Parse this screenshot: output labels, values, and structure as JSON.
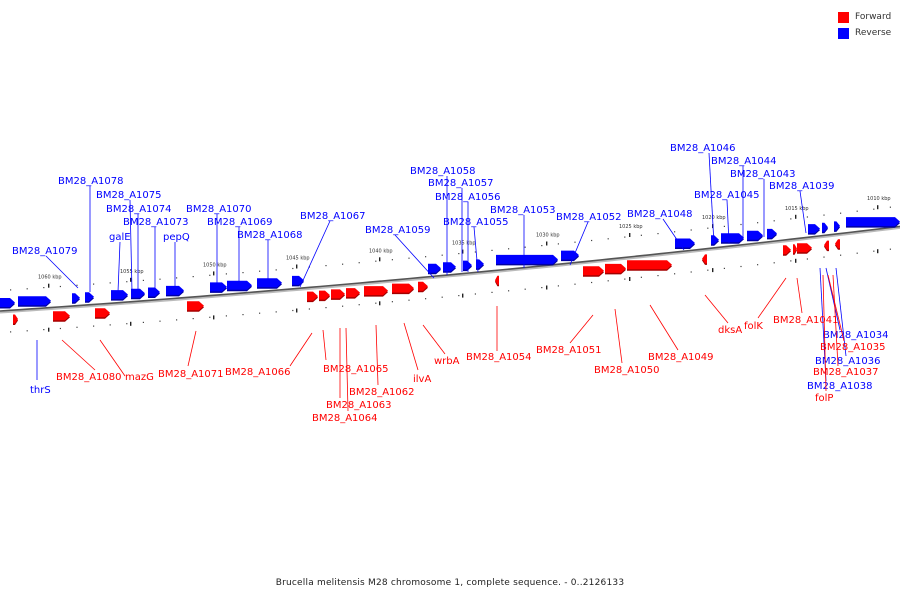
{
  "legend": {
    "forward_label": "Forward",
    "reverse_label": "Reverse",
    "forward_color": "#ff0000",
    "reverse_color": "#0000ff"
  },
  "caption": "Brucella melitensis M28 chromosome 1, complete sequence. - 0..2126133",
  "scale_labels": [
    "1060 kbp",
    "1055 kbp",
    "1050 kbp",
    "1045 kbp",
    "1040 kbp",
    "1035 kbp",
    "1030 kbp",
    "1025 kbp",
    "1020 kbp",
    "1015 kbp",
    "1010 kbp"
  ],
  "genes_reverse": [
    "BM28_A1079",
    "BM28_A1078",
    "BM28_A1075",
    "BM28_A1074",
    "galE",
    "BM28_A1073",
    "pepQ",
    "BM28_A1070",
    "BM28_A1069",
    "BM28_A1068",
    "BM28_A1067",
    "BM28_A1059",
    "BM28_A1058",
    "BM28_A1057",
    "BM28_A1056",
    "BM28_A1055",
    "BM28_A1053",
    "BM28_A1052",
    "BM28_A1048",
    "BM28_A1046",
    "BM28_A1044",
    "BM28_A1045",
    "BM28_A1043",
    "BM28_A1039",
    "thrS",
    "BM28_A1034",
    "BM28_A1036",
    "BM28_A1038"
  ],
  "genes_forward": [
    "BM28_A1080",
    "mazG",
    "BM28_A1071",
    "BM28_A1066",
    "BM28_A1065",
    "BM28_A1063",
    "BM28_A1064",
    "BM28_A1062",
    "ilvA",
    "wrbA",
    "BM28_A1054",
    "BM28_A1051",
    "BM28_A1050",
    "BM28_A1049",
    "dksA",
    "folK",
    "BM28_A1041",
    "BM28_A1035",
    "BM28_A1037",
    "folP"
  ]
}
